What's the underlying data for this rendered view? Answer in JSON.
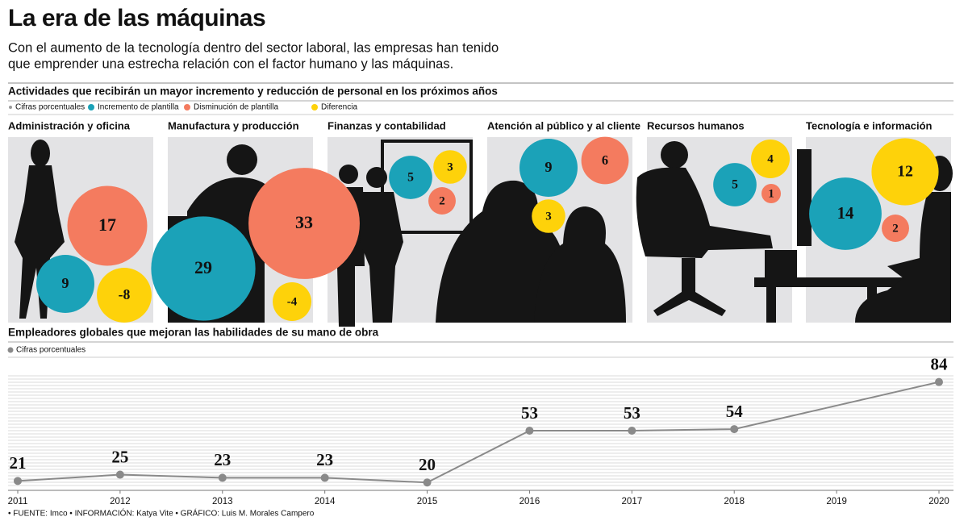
{
  "title": "La era de las máquinas",
  "intro": [
    "Con el aumento de la tecnología dentro del sector laboral, las empresas han tenido",
    "que emprender una estrecha relación con el factor humano y las máquinas."
  ],
  "chart_data": [
    {
      "type": "bubble",
      "title": "Actividades que recibirán un mayor incremento y reducción de personal en los próximos años",
      "note": "Cifras porcentuales",
      "note_color": "#9a9a9a",
      "categories": [
        "Administración y oficina",
        "Manufactura y producción",
        "Finanzas y contabilidad",
        "Atención al público y al cliente",
        "Recursos humanos",
        "Tecnología e información"
      ],
      "series": [
        {
          "name": "Incremento de plantilla",
          "color": "#1ba2b8",
          "values": [
            9,
            29,
            5,
            9,
            5,
            14
          ]
        },
        {
          "name": "Disminución de plantilla",
          "color": "#f47b5f",
          "values": [
            17,
            33,
            2,
            6,
            1,
            2
          ]
        },
        {
          "name": "Diferencia",
          "color": "#fed20a",
          "values": [
            -8,
            -4,
            3,
            3,
            4,
            12
          ]
        }
      ]
    },
    {
      "type": "line",
      "title": "Empleadores globales que mejoran las habilidades de su mano de obra",
      "x": [
        2011,
        2012,
        2013,
        2014,
        2015,
        2016,
        2017,
        2018,
        2020
      ],
      "series": [
        {
          "name": "Cifras porcentuales",
          "color": "#8a8a8a",
          "values": [
            21,
            25,
            23,
            23,
            20,
            53,
            53,
            54,
            84
          ]
        }
      ],
      "xlim": [
        2011,
        2020
      ],
      "xticks": [
        2011,
        2012,
        2013,
        2014,
        2015,
        2016,
        2017,
        2018,
        2019,
        2020
      ],
      "ylim": [
        15,
        90
      ]
    }
  ],
  "source": "• FUENTE: Imco • INFORMACIÓN: Katya Vite • GRÁFICO: Luis M. Morales Campero"
}
